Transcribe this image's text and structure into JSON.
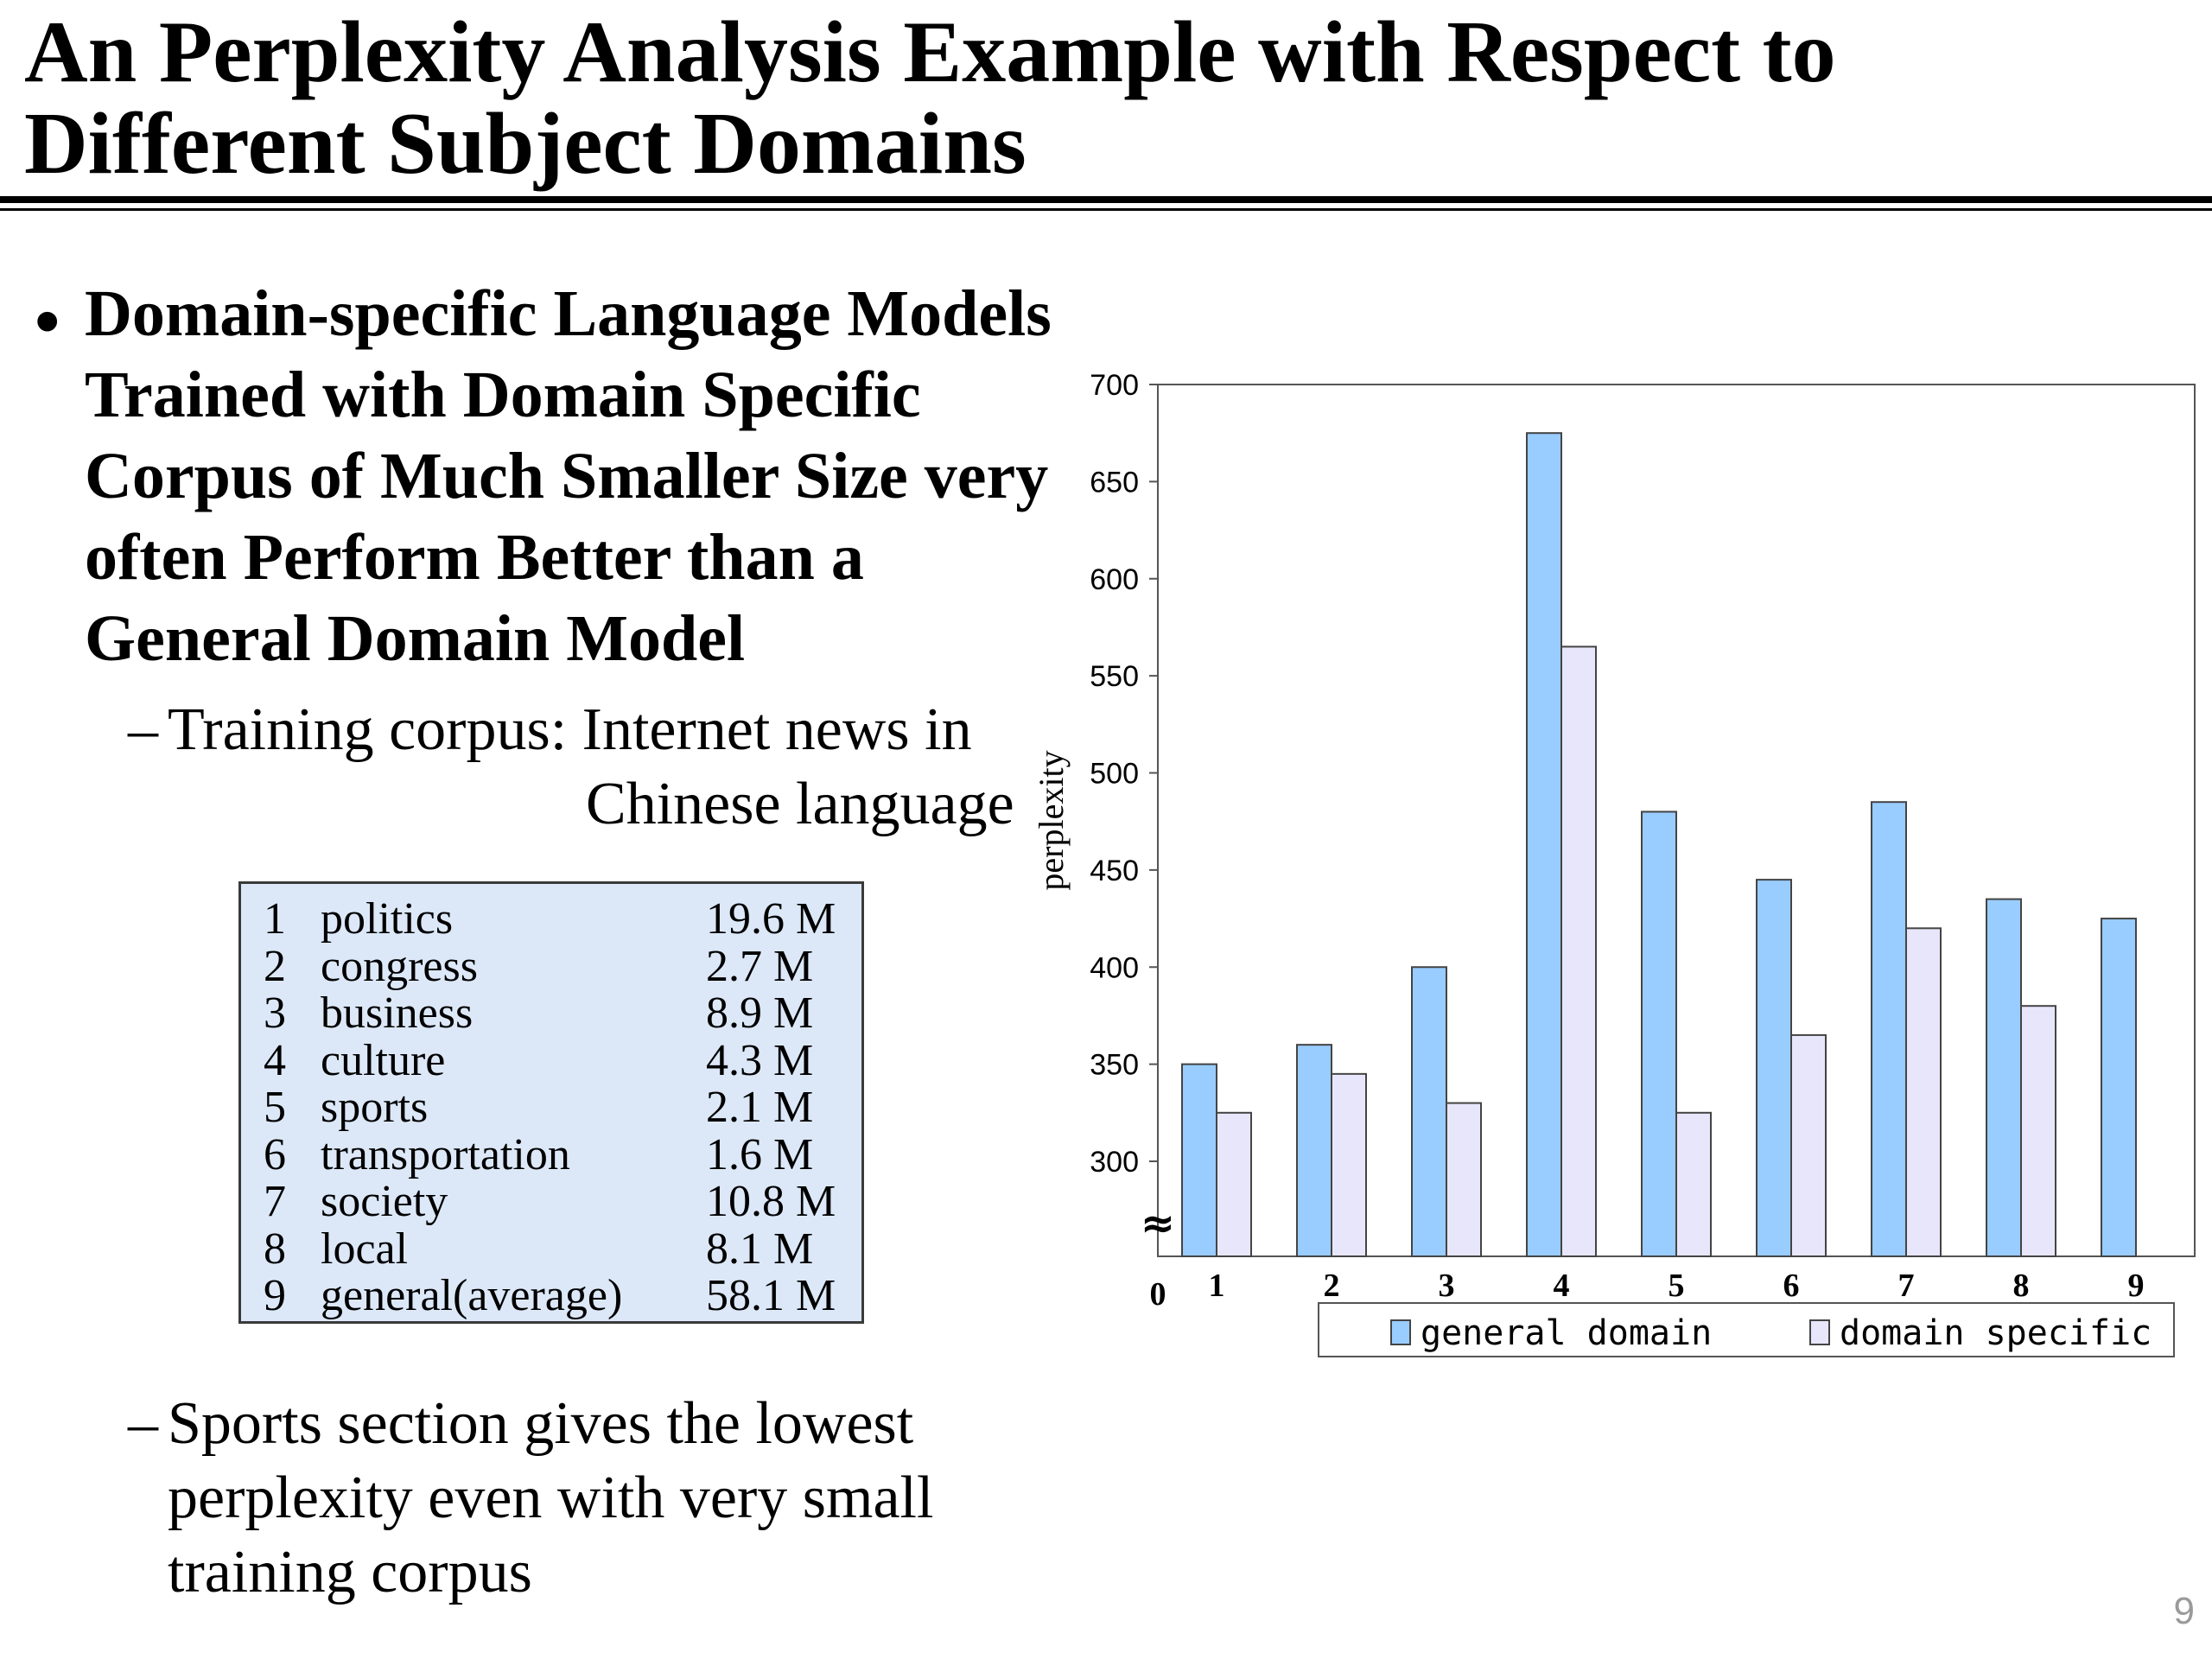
{
  "slide": {
    "title": "An Perplexity Analysis Example with Respect to Different Subject Domains",
    "bullet": "Domain-specific Language Models Trained with Domain Specific Corpus of Much Smaller Size very often Perform Better than a General Domain Model",
    "dash": "–",
    "sub1_line1": "Training corpus: Internet news in",
    "sub1_line2": "Chinese language",
    "sub2": "Sports section gives the lowest perplexity even with very small training corpus",
    "page_number": "9"
  },
  "corpus_table": {
    "rows": [
      {
        "num": "1",
        "domain": "politics",
        "size": "19.6 M"
      },
      {
        "num": "2",
        "domain": "congress",
        "size": "2.7 M"
      },
      {
        "num": "3",
        "domain": "business",
        "size": "8.9 M"
      },
      {
        "num": "4",
        "domain": "culture",
        "size": "4.3 M"
      },
      {
        "num": "5",
        "domain": "sports",
        "size": "2.1 M"
      },
      {
        "num": "6",
        "domain": "transportation",
        "size": "1.6 M"
      },
      {
        "num": "7",
        "domain": "society",
        "size": "10.8 M"
      },
      {
        "num": "8",
        "domain": "local",
        "size": "8.1 M"
      },
      {
        "num": "9",
        "domain": "general(average)",
        "size": "58.1 M"
      }
    ]
  },
  "chart_data": {
    "type": "bar",
    "categories": [
      "1",
      "2",
      "3",
      "4",
      "5",
      "6",
      "7",
      "8",
      "9"
    ],
    "series": [
      {
        "name": "general domain",
        "values": [
          350,
          360,
          400,
          675,
          480,
          445,
          485,
          435,
          425
        ],
        "color": "#99ccff"
      },
      {
        "name": "domain specific",
        "values": [
          325,
          345,
          330,
          565,
          325,
          365,
          420,
          380,
          251
        ],
        "color": "#e8e6fa"
      }
    ],
    "ylabel": "perplexity",
    "yticks": [
      300,
      350,
      400,
      450,
      500,
      550,
      600,
      650,
      700
    ],
    "ylim": [
      250,
      700
    ],
    "axis_break": true,
    "zero_label": "0",
    "break_symbol": "≈",
    "legend_position": "bottom"
  }
}
